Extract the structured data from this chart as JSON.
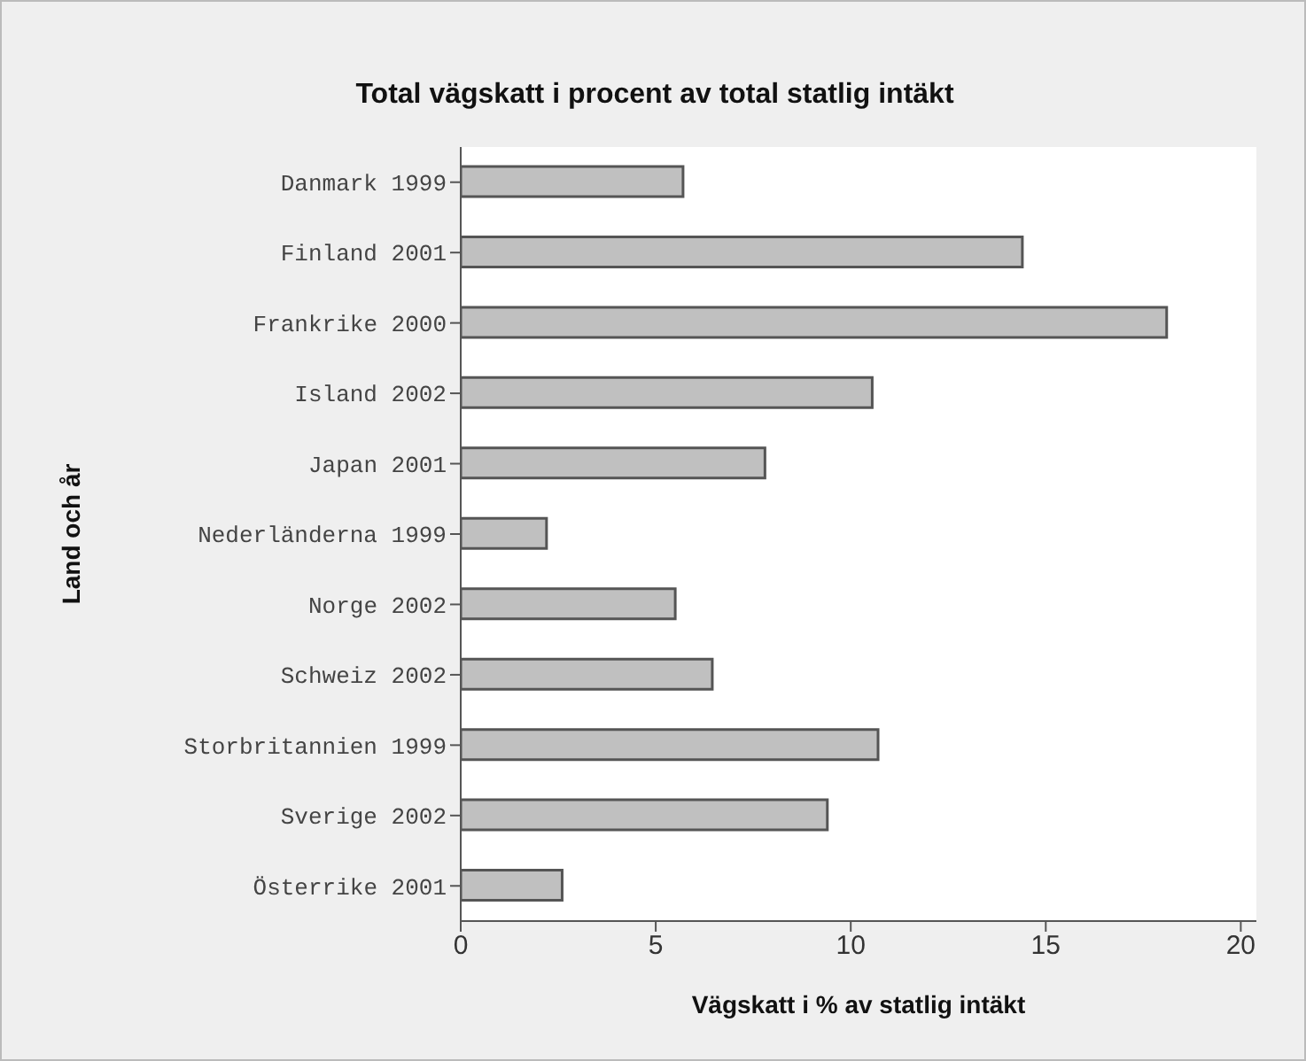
{
  "chart_data": {
    "type": "bar",
    "orientation": "horizontal",
    "title": "Total vägskatt i procent av total statlig intäkt",
    "xlabel": "Vägskatt i % av statlig intäkt",
    "ylabel": "Land och år",
    "categories": [
      "Danmark 1999",
      "Finland 2001",
      "Frankrike 2000",
      "Island 2002",
      "Japan 2001",
      "Nederländerna 1999",
      "Norge 2002",
      "Schweiz 2002",
      "Storbritannien 1999",
      "Sverige 2002",
      "Österrike 2001"
    ],
    "values": [
      5.7,
      14.4,
      18.1,
      10.55,
      7.8,
      2.2,
      5.5,
      6.45,
      10.7,
      9.4,
      2.6
    ],
    "color": "#c0c0c0",
    "xlim": [
      0,
      20.4
    ],
    "xticks": [
      0,
      5,
      10,
      15,
      20
    ],
    "grid": false,
    "legend": false
  }
}
